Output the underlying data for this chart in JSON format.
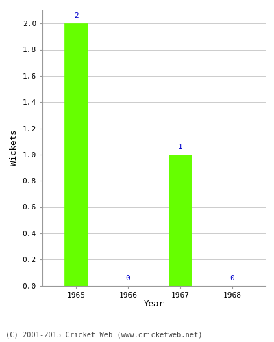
{
  "years": [
    "1965",
    "1966",
    "1967",
    "1968"
  ],
  "values": [
    2,
    0,
    1,
    0
  ],
  "bar_color": "#66ff00",
  "bar_edge_color": "#66ff00",
  "label_color": "#0000cc",
  "ylabel": "Wickets",
  "xlabel": "Year",
  "ylim": [
    0.0,
    2.1
  ],
  "yticks": [
    0.0,
    0.2,
    0.4,
    0.6,
    0.8,
    1.0,
    1.2,
    1.4,
    1.6,
    1.8,
    2.0
  ],
  "grid_color": "#cccccc",
  "footnote": "(C) 2001-2015 Cricket Web (www.cricketweb.net)",
  "label_fontsize": 8,
  "axis_label_fontsize": 9,
  "tick_fontsize": 8,
  "footnote_fontsize": 7.5
}
